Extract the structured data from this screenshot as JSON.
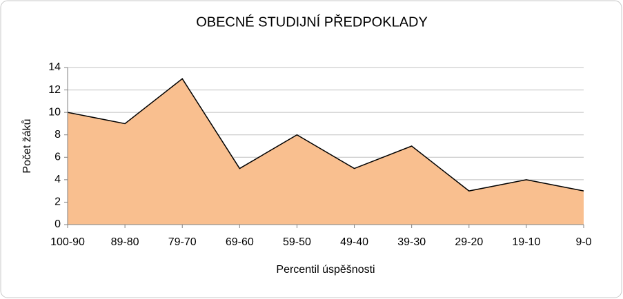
{
  "chart_data": {
    "type": "area",
    "title": "OBECNÉ STUDIJNÍ PŘEDPOKLADY",
    "xlabel": "Percentil úspěšnosti",
    "ylabel": "Počet žáků",
    "categories": [
      "100-90",
      "89-80",
      "79-70",
      "69-60",
      "59-50",
      "49-40",
      "39-30",
      "29-20",
      "19-10",
      "9-0"
    ],
    "values": [
      10,
      9,
      13,
      5,
      8,
      5,
      7,
      3,
      4,
      3
    ],
    "color": "#f9bf8f",
    "line_color": "#000000",
    "ylim": [
      0,
      14
    ],
    "yticks": [
      0,
      2,
      4,
      6,
      8,
      10,
      12,
      14
    ],
    "grid": true
  }
}
